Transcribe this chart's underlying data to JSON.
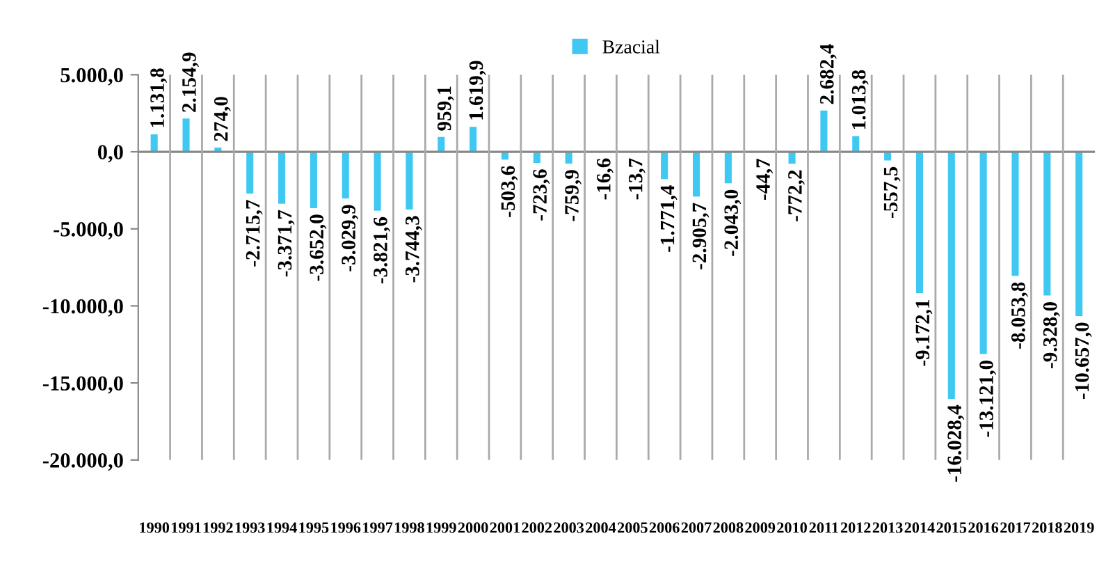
{
  "chart_data": {
    "type": "bar",
    "categories": [
      "1990",
      "1991",
      "1992",
      "1993",
      "1994",
      "1995",
      "1996",
      "1997",
      "1998",
      "1999",
      "2000",
      "2001",
      "2002",
      "2003",
      "2004",
      "2005",
      "2006",
      "2007",
      "2008",
      "2009",
      "2010",
      "2011",
      "2012",
      "2013",
      "2014",
      "2015",
      "2016",
      "2017",
      "2018",
      "2019"
    ],
    "series": [
      {
        "name": "Bzacial",
        "color": "#3ec8f2",
        "values": [
          1131.8,
          2154.9,
          274.0,
          -2715.7,
          -3371.7,
          -3652.0,
          -3029.9,
          -3821.6,
          -3744.3,
          959.1,
          1619.9,
          -503.6,
          -723.6,
          -759.9,
          -16.6,
          -13.7,
          -1771.4,
          -2905.7,
          -2043.0,
          -44.7,
          -772.2,
          2682.4,
          1013.8,
          -557.5,
          -9172.1,
          -16028.4,
          -13121.0,
          -8053.8,
          -9328.0,
          -10657.0
        ],
        "value_labels": [
          "1.131,8",
          "2.154,9",
          "274,0",
          "-2.715,7",
          "-3.371,7",
          "-3.652,0",
          "-3.029,9",
          "-3.821,6",
          "-3.744,3",
          "959,1",
          "1.619,9",
          "-503,6",
          "-723,6",
          "-759,9",
          "-16,6",
          "-13,7",
          "-1.771,4",
          "-2.905,7",
          "-2.043,0",
          "-44,7",
          "-772,2",
          "2.682,4",
          "1.013,8",
          "-557,5",
          "-9.172,1",
          "-16.028,4",
          "-13.121,0",
          "-8.053,8",
          "-9.328,0",
          "-10.657,0"
        ]
      }
    ],
    "ylim": [
      -20000,
      5000
    ],
    "yticks": [
      {
        "value": -20000,
        "label": "-20.000,0"
      },
      {
        "value": -15000,
        "label": "-15.000,0"
      },
      {
        "value": -10000,
        "label": "-10.000,0"
      },
      {
        "value": -5000,
        "label": "-5.000,0"
      },
      {
        "value": 0,
        "label": "0,0"
      },
      {
        "value": 5000,
        "label": "5.000,0"
      }
    ],
    "legend": "top",
    "grid": false
  }
}
